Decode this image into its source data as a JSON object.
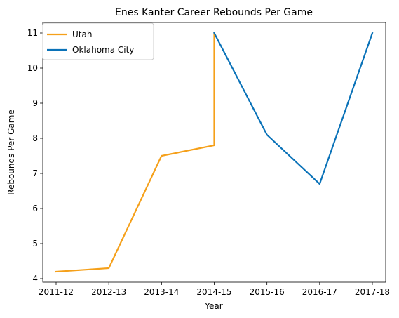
{
  "chart_data": {
    "type": "line",
    "title": "Enes Kanter Career Rebounds Per Game",
    "xlabel": "Year",
    "ylabel": "Rebounds Per Game",
    "categories": [
      "2011-12",
      "2012-13",
      "2013-14",
      "2014-15",
      "2015-16",
      "2016-17",
      "2017-18"
    ],
    "ylim": [
      3.9,
      11.3
    ],
    "yticks": [
      4,
      5,
      6,
      7,
      8,
      9,
      10,
      11
    ],
    "grid": false,
    "legend_position": "upper-left",
    "series": [
      {
        "name": "Utah",
        "color": "#f5a01a",
        "points": [
          {
            "x": "2011-12",
            "y": 4.2
          },
          {
            "x": "2012-13",
            "y": 4.3
          },
          {
            "x": "2013-14",
            "y": 7.5
          },
          {
            "x": "2014-15",
            "y": 7.8
          },
          {
            "x": "2014-15",
            "y": 11.0
          }
        ]
      },
      {
        "name": "Oklahoma City",
        "color": "#0a72b8",
        "points": [
          {
            "x": "2014-15",
            "y": 11.0
          },
          {
            "x": "2015-16",
            "y": 8.1
          },
          {
            "x": "2016-17",
            "y": 6.7
          },
          {
            "x": "2017-18",
            "y": 11.0
          }
        ]
      }
    ]
  }
}
